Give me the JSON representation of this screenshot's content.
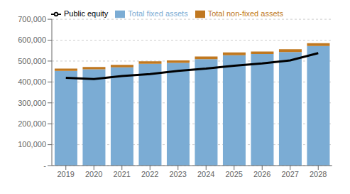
{
  "chart_data": {
    "type": "bar",
    "categories": [
      "2019",
      "2020",
      "2021",
      "2022",
      "2023",
      "2024",
      "2025",
      "2026",
      "2027",
      "2028"
    ],
    "series": [
      {
        "name": "Total fixed assets",
        "type": "bar",
        "color": "#7BACD4",
        "values": [
          453000,
          461000,
          470000,
          487000,
          491000,
          509000,
          528000,
          534000,
          543000,
          572000
        ]
      },
      {
        "name": "Total non-fixed assets",
        "type": "bar",
        "color": "#C07820",
        "values": [
          11000,
          11000,
          12000,
          12000,
          12000,
          13000,
          13000,
          12000,
          14000,
          14000
        ]
      },
      {
        "name": "Public equity",
        "type": "line",
        "color": "#000000",
        "values": [
          420000,
          414000,
          428000,
          438000,
          453000,
          464000,
          478000,
          489000,
          503000,
          538000
        ]
      }
    ],
    "stacked": true,
    "ylim": [
      0,
      700000
    ],
    "yticks": [
      {
        "value": 0,
        "label": "-"
      },
      {
        "value": 100000,
        "label": "100,000"
      },
      {
        "value": 200000,
        "label": "200,000"
      },
      {
        "value": 300000,
        "label": "300,000"
      },
      {
        "value": 400000,
        "label": "400,000"
      },
      {
        "value": 500000,
        "label": "500,000"
      },
      {
        "value": 600000,
        "label": "600,000"
      },
      {
        "value": 700000,
        "label": "700,000"
      }
    ],
    "grid": true,
    "legend": "top"
  }
}
